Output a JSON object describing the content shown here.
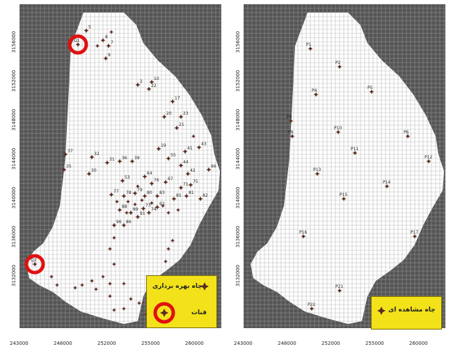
{
  "colors": {
    "background": "#555555",
    "grid": "#9a9a9a",
    "aquifer_fill": "#ffffff",
    "cell_line": "#b9b9b9",
    "well_marker": "#5a2c22",
    "qanat_ring": "#e01010",
    "legend_fill": "#f3e21a"
  },
  "left_map": {
    "y_ticks": [
      "3156000",
      "3152000",
      "3148000",
      "3144000",
      "3140000",
      "3136000",
      "3132000"
    ],
    "x_ticks": [
      "243000",
      "248000",
      "252000",
      "255000",
      "260000"
    ],
    "legend": {
      "pumping_well_label": "چاه بهره برداری",
      "qanat_label": "قنات",
      "pumping_icon": "well-symbol-icon",
      "qanat_icon": "qanat-ring-icon"
    },
    "well_labels": [
      "5",
      "8",
      "7",
      "9",
      "2",
      "10",
      "22",
      "17",
      "20",
      "23",
      "21",
      "37",
      "35",
      "32",
      "31",
      "30",
      "36",
      "39",
      "19",
      "55",
      "41",
      "43",
      "44",
      "42",
      "66",
      "53",
      "64",
      "76",
      "67",
      "71",
      "75",
      "77",
      "78",
      "79",
      "80",
      "83",
      "85",
      "81",
      "82",
      "88",
      "89",
      "91",
      "92",
      "96",
      "86",
      "73",
      "74"
    ],
    "qanat_labels": [
      "Q1",
      "Q2"
    ]
  },
  "right_map": {
    "y_ticks": [
      "3156000",
      "3152000",
      "3148000",
      "3144000",
      "3140000",
      "3136000",
      "3132000"
    ],
    "x_ticks": [
      "243000",
      "248000",
      "252000",
      "255000",
      "260000"
    ],
    "legend": {
      "observation_well_label": "چاه مشاهده ای",
      "observation_icon": "observation-well-icon"
    },
    "observation_wells": [
      "P1",
      "P2",
      "P4",
      "P5",
      "P8",
      "P9",
      "P6",
      "P10",
      "P11",
      "P12",
      "P13",
      "P14",
      "P15",
      "P16",
      "P17",
      "P21",
      "P22"
    ]
  }
}
